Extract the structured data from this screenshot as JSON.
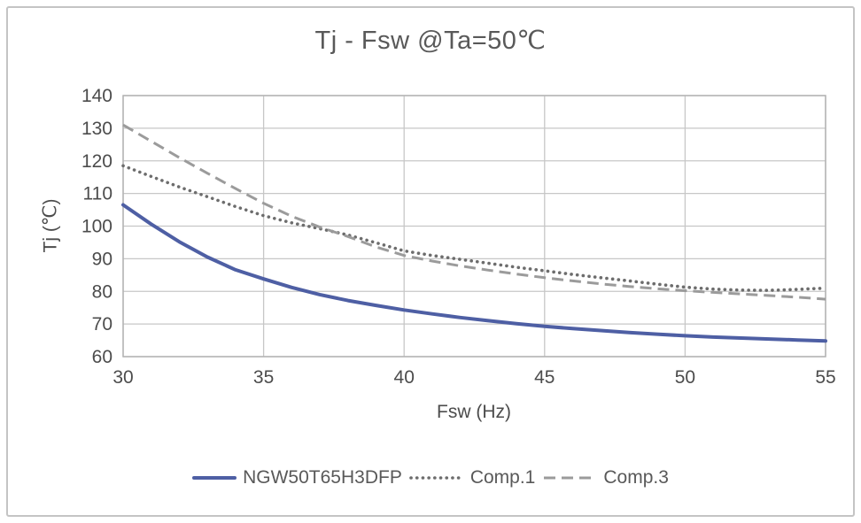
{
  "chart_data": {
    "type": "line",
    "title": "Tj - Fsw @Ta=50℃",
    "xlabel": "Fsw (Hz)",
    "ylabel": "Tj (℃)",
    "xlim": [
      30,
      55
    ],
    "ylim": [
      60,
      140
    ],
    "xticks": [
      30,
      35,
      40,
      45,
      50,
      55
    ],
    "yticks": [
      60,
      70,
      80,
      90,
      100,
      110,
      120,
      130,
      140
    ],
    "grid": true,
    "legend_position": "bottom",
    "x": [
      30,
      31,
      32,
      33,
      34,
      35,
      36,
      37,
      38,
      39,
      40,
      41,
      42,
      43,
      44,
      45,
      46,
      47,
      48,
      49,
      50,
      51,
      52,
      53,
      54,
      55
    ],
    "series": [
      {
        "name": "NGW50T65H3DFP",
        "style": "solid",
        "color": "#4e5fa4",
        "width": 4,
        "values": [
          106.5,
          100.6,
          95.2,
          90.5,
          86.6,
          83.8,
          81.2,
          79.0,
          77.2,
          75.7,
          74.3,
          73.1,
          72.0,
          71.0,
          70.1,
          69.3,
          68.6,
          68.0,
          67.4,
          66.9,
          66.4,
          66.0,
          65.7,
          65.4,
          65.1,
          64.8
        ]
      },
      {
        "name": "Comp.1",
        "style": "dotted",
        "color": "#6d6d6d",
        "width": 3.6,
        "values": [
          118.5,
          115.2,
          112.0,
          109.0,
          106.0,
          103.2,
          101.0,
          99.2,
          97.3,
          94.9,
          92.4,
          91.0,
          89.8,
          88.6,
          87.4,
          86.3,
          85.2,
          84.2,
          83.2,
          82.2,
          81.3,
          80.7,
          80.4,
          80.3,
          80.6,
          81.0
        ]
      },
      {
        "name": "Comp.3",
        "style": "dashed",
        "color": "#9b9b9b",
        "width": 3,
        "values": [
          131.0,
          126.0,
          121.0,
          116.2,
          111.5,
          107.0,
          103.0,
          99.7,
          96.8,
          93.6,
          91.0,
          89.3,
          87.8,
          86.5,
          85.3,
          84.2,
          83.2,
          82.3,
          81.5,
          80.8,
          80.2,
          79.7,
          79.2,
          78.7,
          78.2,
          77.6
        ]
      }
    ]
  },
  "colors": {
    "text": "#4c4c4c",
    "grid": "#c7c7c7",
    "axis_border": "#b3b3b3",
    "title": "#595959"
  }
}
